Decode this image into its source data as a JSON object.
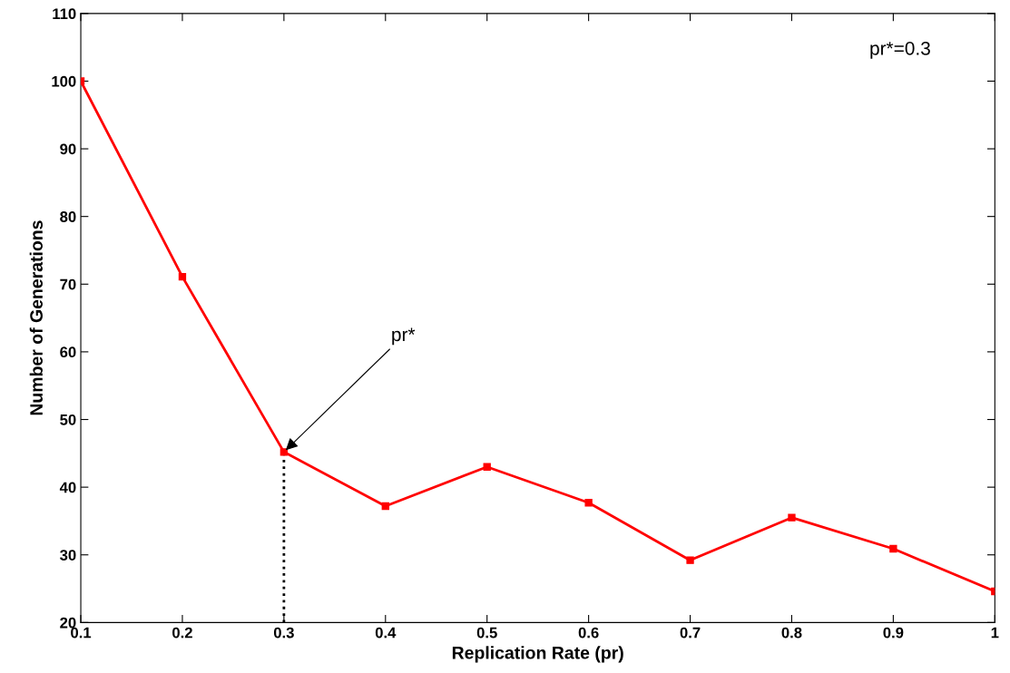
{
  "chart_data": {
    "type": "line",
    "xlabel": "Replication Rate (pr)",
    "ylabel": "Number of Generations",
    "xlim": [
      0.1,
      1
    ],
    "xticks": [
      0.1,
      0.2,
      0.3,
      0.4,
      0.5,
      0.6,
      0.7,
      0.8,
      0.9,
      1
    ],
    "ylim": [
      20,
      110
    ],
    "yticks": [
      20,
      30,
      40,
      50,
      60,
      70,
      80,
      90,
      100,
      110
    ],
    "grid": false,
    "legend": false,
    "series": [
      {
        "color": "#ff0000",
        "marker": "square",
        "line_style": "solid",
        "x": [
          0.1,
          0.2,
          0.3,
          0.4,
          0.5,
          0.6,
          0.7,
          0.8,
          0.9,
          1
        ],
        "values": [
          100,
          71.1,
          45.2,
          37.2,
          43.0,
          37.7,
          29.2,
          35.5,
          30.9,
          24.6
        ]
      },
      {
        "color": "#000000",
        "marker": "none",
        "line_style": "dotted",
        "x": [
          0.3,
          0.3
        ],
        "values": [
          20,
          45.2
        ]
      }
    ],
    "annotations": [
      {
        "text": "pr*",
        "x": 0.3,
        "y": 45.2
      },
      "pr*=0.3"
    ]
  }
}
